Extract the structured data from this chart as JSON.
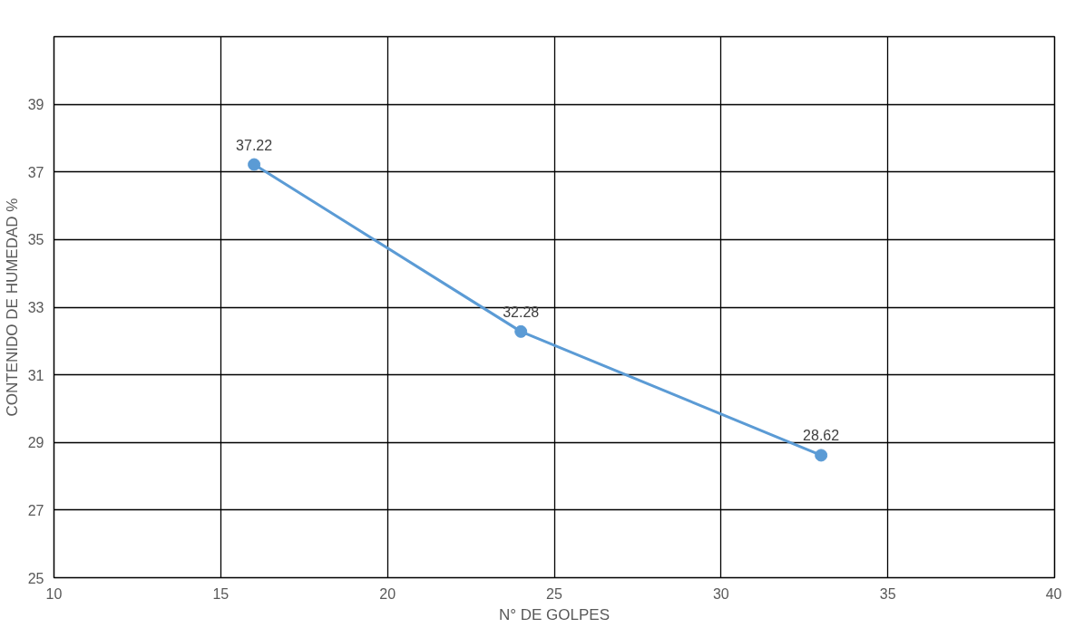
{
  "chart_data": {
    "type": "line",
    "xlabel": "N° DE GOLPES",
    "ylabel": "CONTENIDO DE HUMEDAD %",
    "x": [
      16,
      24,
      33
    ],
    "series": [
      {
        "color": "#5b9bd5",
        "values": [
          37.22,
          32.28,
          28.62
        ]
      }
    ],
    "xlim": [
      10,
      40
    ],
    "xticks": [
      10,
      15,
      20,
      25,
      30,
      35,
      40
    ],
    "ylim": [
      25,
      41
    ],
    "yticks": [
      25,
      27,
      29,
      31,
      33,
      35,
      37,
      39
    ],
    "grid": true,
    "marker": "circle",
    "line_style": "solid",
    "data_labels": true
  }
}
